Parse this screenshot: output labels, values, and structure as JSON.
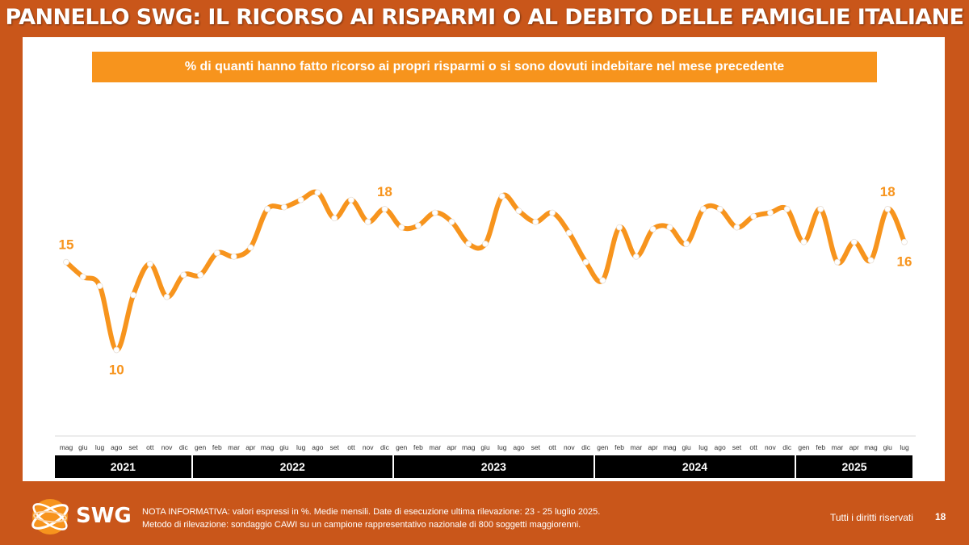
{
  "title": "PANNELLO SWG: IL RICORSO AI RISPARMI O AL DEBITO DELLE FAMIGLIE ITALIANE",
  "subtitle": "% di quanti hanno fatto ricorso ai propri risparmi o si sono dovuti indebitare nel mese precedente",
  "colors": {
    "background": "#c9561a",
    "accent": "#f7941d",
    "line": "#f7941d",
    "year_bar": "#000000"
  },
  "footer": {
    "note_line1": "NOTA INFORMATIVA: valori espressi in %. Medie mensili. Date di esecuzione ultima rilevazione: 23 - 25 luglio 2025.",
    "note_line2": "Metodo di rilevazione: sondaggio CAWI su un campione rappresentativo nazionale di 800 soggetti maggiorenni.",
    "rights": "Tutti i diritti riservati",
    "page_number": "18",
    "logo_text": "SWG",
    "logo_icon": "globe-icon"
  },
  "chart_data": {
    "type": "line",
    "title": "% di quanti hanno fatto ricorso ai propri risparmi o si sono dovuti indebitare nel mese precedente",
    "xlabel": "",
    "ylabel": "",
    "ylim": [
      5,
      25
    ],
    "grid": false,
    "categories": [
      "mag",
      "giu",
      "lug",
      "ago",
      "set",
      "ott",
      "nov",
      "dic",
      "gen",
      "feb",
      "mar",
      "apr",
      "mag",
      "giu",
      "lug",
      "ago",
      "set",
      "ott",
      "nov",
      "dic",
      "gen",
      "feb",
      "mar",
      "apr",
      "mag",
      "giu",
      "lug",
      "ago",
      "set",
      "ott",
      "nov",
      "dic",
      "gen",
      "feb",
      "mar",
      "apr",
      "mag",
      "giu",
      "lug",
      "ago",
      "set",
      "ott",
      "nov",
      "dic",
      "gen",
      "feb",
      "mar",
      "apr",
      "mag",
      "giu",
      "lug"
    ],
    "years": [
      {
        "label": "2021",
        "start": 0,
        "end": 7
      },
      {
        "label": "2022",
        "start": 8,
        "end": 19
      },
      {
        "label": "2023",
        "start": 20,
        "end": 31
      },
      {
        "label": "2024",
        "start": 32,
        "end": 43
      },
      {
        "label": "2025",
        "start": 44,
        "end": 50
      }
    ],
    "series": [
      {
        "values": [
          15,
          14.2,
          13.7,
          10.2,
          13.2,
          14.9,
          13.1,
          14.3,
          14.3,
          15.5,
          15.3,
          15.8,
          17.9,
          18.0,
          18.4,
          18.8,
          17.4,
          18.4,
          17.2,
          17.9,
          16.9,
          17.0,
          17.7,
          17.2,
          16.0,
          16.0,
          18.6,
          17.8,
          17.2,
          17.7,
          16.6,
          15.0,
          14.0,
          16.9,
          15.3,
          16.8,
          16.9,
          16.0,
          17.9,
          17.9,
          16.9,
          17.5,
          17.7,
          17.9,
          16.1,
          17.9,
          15.0,
          16.1,
          15.1,
          17.9,
          16.1
        ]
      }
    ],
    "labels": [
      {
        "index": 0,
        "text": "15",
        "pos": "above"
      },
      {
        "index": 3,
        "text": "10",
        "pos": "below"
      },
      {
        "index": 19,
        "text": "18",
        "pos": "above"
      },
      {
        "index": 49,
        "text": "18",
        "pos": "above"
      },
      {
        "index": 50,
        "text": "16",
        "pos": "below"
      }
    ]
  }
}
